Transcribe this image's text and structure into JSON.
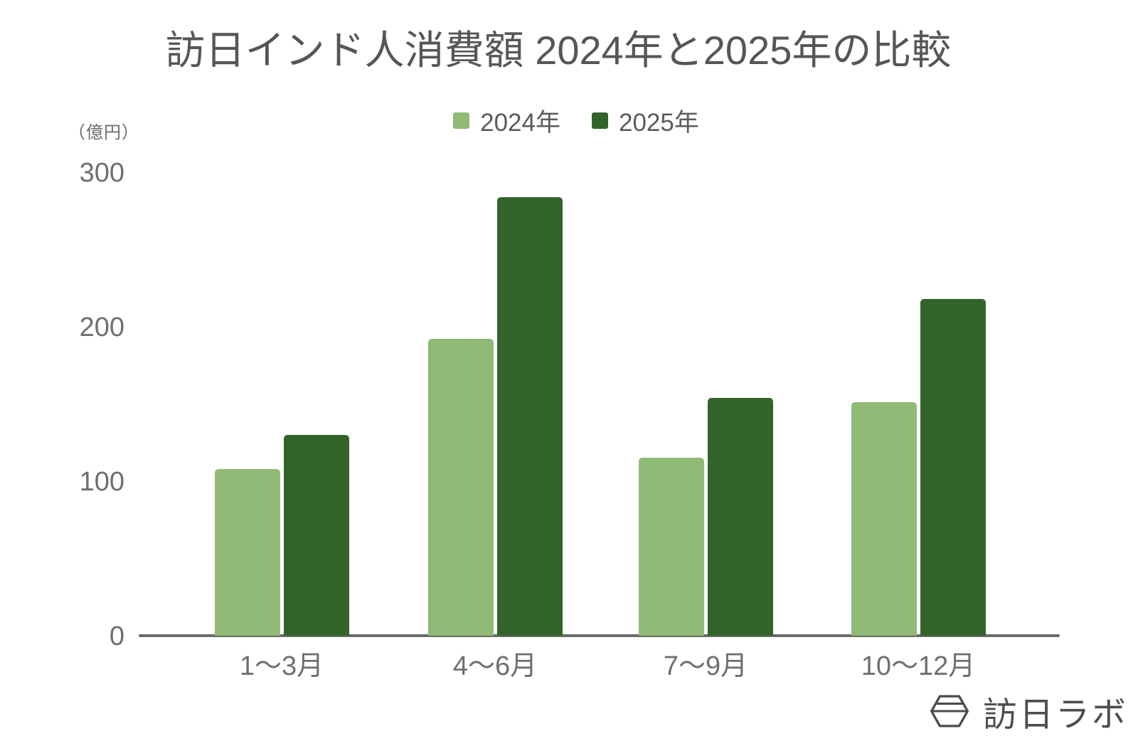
{
  "title": "訪日インド人消費額 2024年と2025年の比較",
  "unit_label": "（億円）",
  "legend": {
    "items": [
      {
        "label": "2024年",
        "color": "#90ba76"
      },
      {
        "label": "2025年",
        "color": "#32642a"
      }
    ]
  },
  "chart_data": {
    "type": "bar",
    "title": "訪日インド人消費額 2024年と2025年の比較",
    "categories": [
      "1〜3月",
      "4〜6月",
      "7〜9月",
      "10〜12月"
    ],
    "series": [
      {
        "name": "2024年",
        "color": "#90ba76",
        "values": [
          108,
          192,
          115,
          151
        ]
      },
      {
        "name": "2025年",
        "color": "#32642a",
        "values": [
          130,
          284,
          154,
          218
        ]
      }
    ],
    "xlabel": "",
    "ylabel": "（億円）",
    "ylim": [
      0,
      300
    ],
    "yticks": [
      0,
      100,
      200,
      300
    ],
    "grid": false,
    "legend_position": "top"
  },
  "logo": {
    "text": "訪日ラボ",
    "icon": "hexagon-gem-icon"
  },
  "colors": {
    "series_2024": "#90ba76",
    "series_2025": "#32642a",
    "title_text": "#555658",
    "axis_text": "#6f6f6f",
    "axis_line": "#6a6a6a",
    "logo_text": "#4d4d4d",
    "background": "#ffffff"
  }
}
